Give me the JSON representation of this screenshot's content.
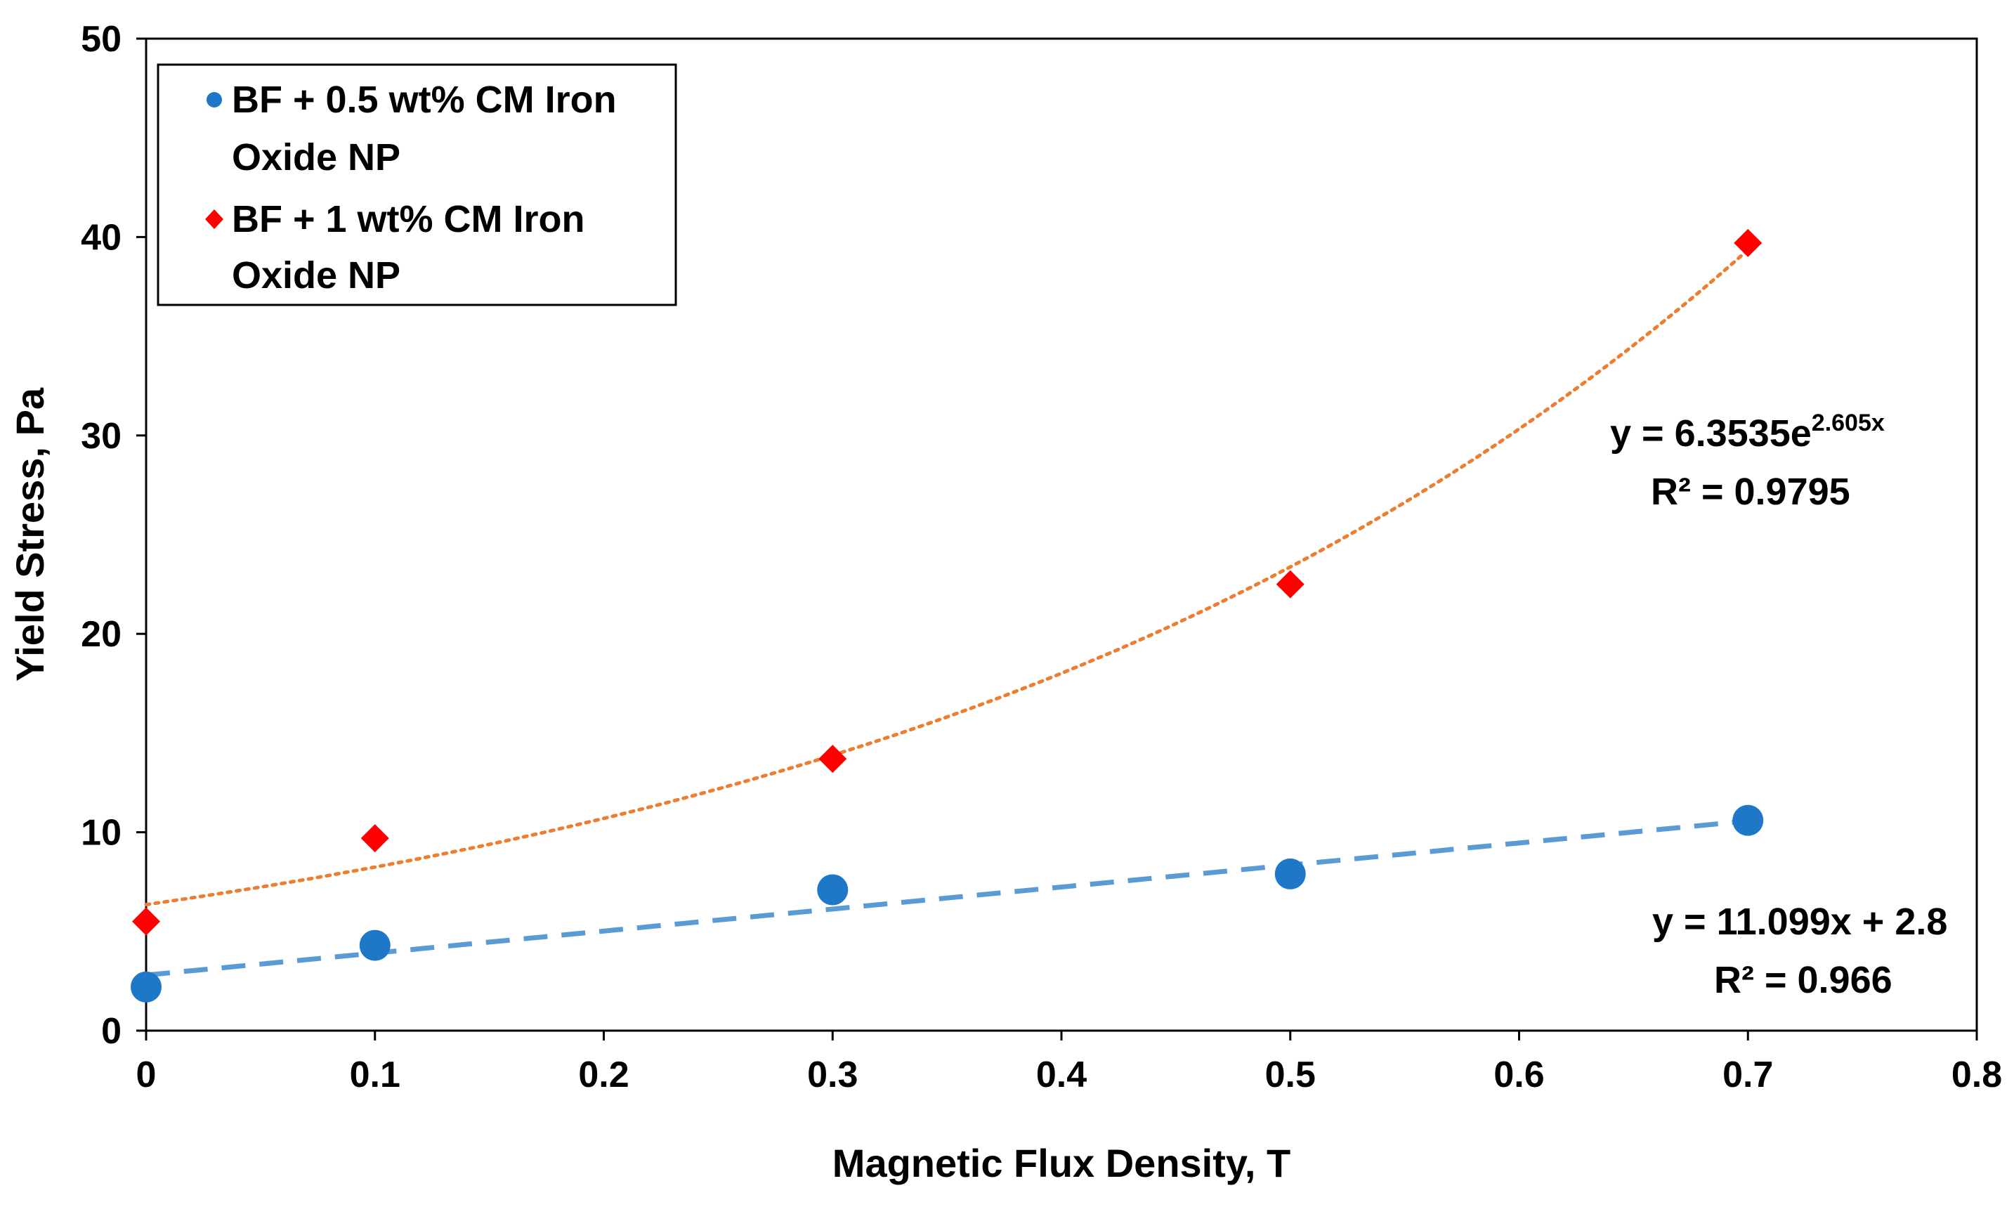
{
  "chart_data": {
    "type": "scatter",
    "title": "",
    "xlabel": "Magnetic Flux Density, T",
    "ylabel": "Yield  Stress, Pa",
    "xlim": [
      0,
      0.8
    ],
    "ylim": [
      0,
      50
    ],
    "x_ticks": [
      "0",
      "0.1",
      "0.2",
      "0.3",
      "0.4",
      "0.5",
      "0.6",
      "0.7",
      "0.8"
    ],
    "y_ticks": [
      "0",
      "10",
      "20",
      "30",
      "40",
      "50"
    ],
    "grid": false,
    "legend_position": "top-left",
    "series": [
      {
        "name": "BF + 0.5 wt% CM Iron Oxide NP",
        "legend_lines": [
          "BF + 0.5 wt% CM Iron",
          "Oxide NP"
        ],
        "marker": "circle",
        "color": "#1f77c8",
        "x": [
          0,
          0.1,
          0.3,
          0.5,
          0.7
        ],
        "y": [
          2.2,
          4.3,
          7.1,
          7.9,
          10.6
        ],
        "trendline": {
          "kind": "linear",
          "slope": 11.099,
          "intercept": 2.8,
          "style": "dashed",
          "color": "#5b9bd5",
          "equation": "y = 11.099x + 2.8",
          "r2": "R² = 0.966"
        }
      },
      {
        "name": "BF + 1 wt% CM Iron Oxide NP",
        "legend_lines": [
          "BF + 1 wt% CM Iron",
          "Oxide NP"
        ],
        "marker": "diamond",
        "color": "#ff0000",
        "x": [
          0,
          0.1,
          0.3,
          0.5,
          0.7
        ],
        "y": [
          5.5,
          9.7,
          13.7,
          22.5,
          39.7
        ],
        "trendline": {
          "kind": "exponential",
          "a": 6.3535,
          "b": 2.605,
          "style": "dotted",
          "color": "#ed7d31",
          "equation_base": "y = 6.3535e",
          "equation_exp": "2.605x",
          "r2": "R² = 0.9795"
        }
      }
    ]
  }
}
